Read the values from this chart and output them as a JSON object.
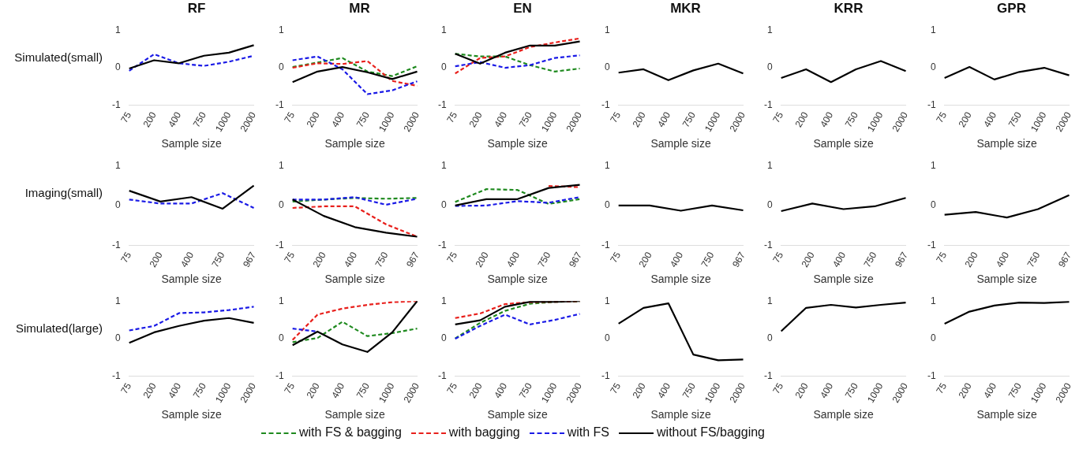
{
  "chart_data": [
    {
      "type": "line",
      "title": "RF",
      "ylabel": "Simulated(small)",
      "xlabel": "Sample size",
      "categories": [
        "75",
        "200",
        "400",
        "750",
        "1000",
        "2000"
      ],
      "ylim": [
        -1,
        1
      ],
      "yticks": [
        -1,
        0,
        1
      ],
      "grid": false,
      "series": [
        {
          "color": "#1a1ae6",
          "line_style": "dashed",
          "values": [
            -0.08,
            0.36,
            0.12,
            0.05,
            0.16,
            0.32
          ]
        },
        {
          "color": "#000000",
          "line_style": "solid",
          "values": [
            -0.02,
            0.2,
            0.12,
            0.32,
            0.4,
            0.6
          ]
        }
      ]
    },
    {
      "type": "line",
      "title": "MR",
      "xlabel": "Sample size",
      "categories": [
        "75",
        "200",
        "400",
        "750",
        "1000",
        "2000"
      ],
      "ylim": [
        -1,
        1
      ],
      "yticks": [
        -1,
        0,
        1
      ],
      "grid": false,
      "series": [
        {
          "color": "#1f8a1f",
          "line_style": "dashed",
          "values": [
            0.02,
            0.14,
            0.26,
            -0.1,
            -0.22,
            0.04
          ]
        },
        {
          "color": "#e8201c",
          "line_style": "dashed",
          "values": [
            0.0,
            0.12,
            0.1,
            0.18,
            -0.35,
            -0.48
          ]
        },
        {
          "color": "#1a1ae6",
          "line_style": "dashed",
          "values": [
            0.2,
            0.3,
            -0.04,
            -0.7,
            -0.6,
            -0.36
          ]
        },
        {
          "color": "#000000",
          "line_style": "solid",
          "values": [
            -0.38,
            -0.1,
            0.02,
            -0.12,
            -0.3,
            -0.1
          ]
        }
      ]
    },
    {
      "type": "line",
      "title": "EN",
      "xlabel": "Sample size",
      "categories": [
        "75",
        "200",
        "400",
        "750",
        "1000",
        "2000"
      ],
      "ylim": [
        -1,
        1
      ],
      "yticks": [
        -1,
        0,
        1
      ],
      "grid": false,
      "series": [
        {
          "color": "#1f8a1f",
          "line_style": "dashed",
          "values": [
            0.37,
            0.3,
            0.3,
            0.07,
            -0.1,
            -0.02
          ]
        },
        {
          "color": "#e8201c",
          "line_style": "dashed",
          "values": [
            -0.15,
            0.26,
            0.3,
            0.55,
            0.67,
            0.78
          ]
        },
        {
          "color": "#1a1ae6",
          "line_style": "dashed",
          "values": [
            0.04,
            0.15,
            0.0,
            0.07,
            0.26,
            0.33
          ]
        },
        {
          "color": "#000000",
          "line_style": "solid",
          "values": [
            0.37,
            0.11,
            0.4,
            0.59,
            0.59,
            0.7
          ]
        }
      ]
    },
    {
      "type": "line",
      "title": "MKR",
      "xlabel": "Sample size",
      "categories": [
        "75",
        "200",
        "400",
        "750",
        "1000",
        "2000"
      ],
      "ylim": [
        -1,
        1
      ],
      "yticks": [
        -1,
        0,
        1
      ],
      "grid": false,
      "series": [
        {
          "color": "#000000",
          "line_style": "solid",
          "values": [
            -0.13,
            -0.04,
            -0.33,
            -0.07,
            0.11,
            -0.15
          ]
        }
      ]
    },
    {
      "type": "line",
      "title": "KRR",
      "xlabel": "Sample size",
      "categories": [
        "75",
        "200",
        "400",
        "750",
        "1000",
        "2000"
      ],
      "ylim": [
        -1,
        1
      ],
      "yticks": [
        -1,
        0,
        1
      ],
      "grid": false,
      "series": [
        {
          "color": "#000000",
          "line_style": "solid",
          "values": [
            -0.27,
            -0.04,
            -0.38,
            -0.04,
            0.18,
            -0.09
          ]
        }
      ]
    },
    {
      "type": "line",
      "title": "GPR",
      "xlabel": "Sample size",
      "categories": [
        "75",
        "200",
        "400",
        "750",
        "1000",
        "2000"
      ],
      "ylim": [
        -1,
        1
      ],
      "yticks": [
        -1,
        0,
        1
      ],
      "grid": false,
      "series": [
        {
          "color": "#000000",
          "line_style": "solid",
          "values": [
            -0.27,
            0.02,
            -0.31,
            -0.11,
            0.0,
            -0.2
          ]
        }
      ]
    },
    {
      "type": "line",
      "ylabel": "Imaging(small)",
      "xlabel": "Sample size",
      "categories": [
        "75",
        "200",
        "400",
        "750",
        "967"
      ],
      "ylim": [
        -1,
        1
      ],
      "yticks": [
        -1,
        0,
        1
      ],
      "grid": false,
      "series": [
        {
          "color": "#1a1ae6",
          "line_style": "dashed",
          "values": [
            0.15,
            0.05,
            0.05,
            0.31,
            -0.06
          ]
        },
        {
          "color": "#000000",
          "line_style": "solid",
          "values": [
            0.37,
            0.1,
            0.21,
            -0.08,
            0.5
          ]
        }
      ]
    },
    {
      "type": "line",
      "xlabel": "Sample size",
      "categories": [
        "75",
        "200",
        "400",
        "750",
        "967"
      ],
      "ylim": [
        -1,
        1
      ],
      "yticks": [
        -1,
        0,
        1
      ],
      "grid": false,
      "series": [
        {
          "color": "#1f8a1f",
          "line_style": "dashed",
          "values": [
            0.1,
            0.15,
            0.19,
            0.17,
            0.19
          ]
        },
        {
          "color": "#e8201c",
          "line_style": "dashed",
          "values": [
            -0.06,
            -0.02,
            -0.02,
            -0.47,
            -0.78
          ]
        },
        {
          "color": "#1a1ae6",
          "line_style": "dashed",
          "values": [
            0.15,
            0.15,
            0.21,
            0.02,
            0.17
          ]
        },
        {
          "color": "#000000",
          "line_style": "solid",
          "values": [
            0.15,
            -0.26,
            -0.54,
            -0.68,
            -0.78
          ]
        }
      ]
    },
    {
      "type": "line",
      "xlabel": "Sample size",
      "categories": [
        "75",
        "200",
        "400",
        "750",
        "967"
      ],
      "ylim": [
        -1,
        1
      ],
      "yticks": [
        -1,
        0,
        1
      ],
      "grid": false,
      "series": [
        {
          "color": "#1f8a1f",
          "line_style": "dashed",
          "values": [
            0.09,
            0.41,
            0.39,
            0.04,
            0.16
          ]
        },
        {
          "color": "#e8201c",
          "line_style": "dashed",
          "values": [
            null,
            null,
            null,
            0.49,
            0.46
          ]
        },
        {
          "color": "#1a1ae6",
          "line_style": "dashed",
          "values": [
            -0.01,
            0.0,
            0.11,
            0.07,
            0.21
          ]
        },
        {
          "color": "#000000",
          "line_style": "solid",
          "values": [
            0.0,
            0.16,
            0.16,
            0.44,
            0.52
          ]
        }
      ]
    },
    {
      "type": "line",
      "xlabel": "Sample size",
      "categories": [
        "75",
        "200",
        "400",
        "750",
        "967"
      ],
      "ylim": [
        -1,
        1
      ],
      "yticks": [
        -1,
        0,
        1
      ],
      "grid": false,
      "series": [
        {
          "color": "#000000",
          "line_style": "solid",
          "values": [
            0.0,
            0.0,
            -0.13,
            0.0,
            -0.12
          ]
        }
      ]
    },
    {
      "type": "line",
      "xlabel": "Sample size",
      "categories": [
        "75",
        "200",
        "400",
        "750",
        "967"
      ],
      "ylim": [
        -1,
        1
      ],
      "yticks": [
        -1,
        0,
        1
      ],
      "grid": false,
      "series": [
        {
          "color": "#000000",
          "line_style": "solid",
          "values": [
            -0.14,
            0.05,
            -0.09,
            -0.02,
            0.19
          ]
        }
      ]
    },
    {
      "type": "line",
      "xlabel": "Sample size",
      "categories": [
        "75",
        "200",
        "400",
        "750",
        "967"
      ],
      "ylim": [
        -1,
        1
      ],
      "yticks": [
        -1,
        0,
        1
      ],
      "grid": false,
      "series": [
        {
          "color": "#000000",
          "line_style": "solid",
          "values": [
            -0.23,
            -0.16,
            -0.3,
            -0.09,
            0.26
          ]
        }
      ]
    },
    {
      "type": "line",
      "ylabel": "Simulated(large)",
      "xlabel": "Sample size",
      "categories": [
        "75",
        "200",
        "400",
        "750",
        "1000",
        "2000"
      ],
      "ylim": [
        -1,
        1
      ],
      "yticks": [
        -1,
        0,
        1
      ],
      "grid": false,
      "series": [
        {
          "color": "#1a1ae6",
          "line_style": "dashed",
          "values": [
            0.22,
            0.34,
            0.68,
            0.7,
            0.76,
            0.85
          ]
        },
        {
          "color": "#000000",
          "line_style": "solid",
          "values": [
            -0.11,
            0.17,
            0.34,
            0.48,
            0.55,
            0.42
          ]
        }
      ]
    },
    {
      "type": "line",
      "xlabel": "Sample size",
      "categories": [
        "75",
        "200",
        "400",
        "750",
        "1000",
        "2000"
      ],
      "ylim": [
        -1,
        1
      ],
      "yticks": [
        -1,
        0,
        1
      ],
      "grid": false,
      "series": [
        {
          "color": "#1f8a1f",
          "line_style": "dashed",
          "values": [
            -0.09,
            0.02,
            0.45,
            0.07,
            0.15,
            0.27
          ]
        },
        {
          "color": "#e8201c",
          "line_style": "dashed",
          "values": [
            -0.03,
            0.64,
            0.8,
            0.9,
            0.97,
            1.0
          ]
        },
        {
          "color": "#1a1ae6",
          "line_style": "dashed",
          "values": [
            0.27,
            0.19,
            null,
            null,
            null,
            null
          ]
        },
        {
          "color": "#000000",
          "line_style": "solid",
          "values": [
            -0.17,
            0.19,
            -0.15,
            -0.35,
            0.17,
            1.0
          ]
        }
      ]
    },
    {
      "type": "line",
      "xlabel": "Sample size",
      "categories": [
        "75",
        "200",
        "400",
        "750",
        "1000",
        "2000"
      ],
      "ylim": [
        -1,
        1
      ],
      "yticks": [
        -1,
        0,
        1
      ],
      "grid": false,
      "legend": "bottom",
      "series": [
        {
          "name": "with FS & bagging",
          "color": "#1f8a1f",
          "line_style": "dashed",
          "values": [
            0.01,
            0.42,
            0.74,
            0.93,
            0.98,
            0.99
          ]
        },
        {
          "name": "with bagging",
          "color": "#e8201c",
          "line_style": "dashed",
          "values": [
            0.55,
            0.67,
            0.92,
            0.97,
            0.98,
            1.0
          ]
        },
        {
          "name": "with FS",
          "color": "#1a1ae6",
          "line_style": "dashed",
          "values": [
            0.0,
            0.34,
            0.64,
            0.38,
            0.5,
            0.66
          ]
        },
        {
          "name": "without FS/bagging",
          "color": "#000000",
          "line_style": "solid",
          "values": [
            0.38,
            0.49,
            0.85,
            0.98,
            0.98,
            1.0
          ]
        }
      ]
    },
    {
      "type": "line",
      "xlabel": "Sample size",
      "categories": [
        "75",
        "200",
        "400",
        "750",
        "1000",
        "2000"
      ],
      "ylim": [
        -1,
        1
      ],
      "yticks": [
        -1,
        0,
        1
      ],
      "grid": false,
      "series": [
        {
          "color": "#000000",
          "line_style": "solid",
          "values": [
            0.4,
            0.82,
            0.94,
            -0.42,
            -0.57,
            -0.55
          ]
        }
      ]
    },
    {
      "type": "line",
      "xlabel": "Sample size",
      "categories": [
        "75",
        "200",
        "400",
        "750",
        "1000",
        "2000"
      ],
      "ylim": [
        -1,
        1
      ],
      "yticks": [
        -1,
        0,
        1
      ],
      "grid": false,
      "series": [
        {
          "color": "#000000",
          "line_style": "solid",
          "values": [
            0.2,
            0.82,
            0.9,
            0.83,
            0.9,
            0.96
          ]
        }
      ]
    },
    {
      "type": "line",
      "xlabel": "Sample size",
      "categories": [
        "75",
        "200",
        "400",
        "750",
        "1000",
        "2000"
      ],
      "ylim": [
        -1,
        1
      ],
      "yticks": [
        -1,
        0,
        1
      ],
      "grid": false,
      "series": [
        {
          "color": "#000000",
          "line_style": "solid",
          "values": [
            0.4,
            0.72,
            0.88,
            0.96,
            0.95,
            0.98
          ]
        }
      ]
    }
  ]
}
